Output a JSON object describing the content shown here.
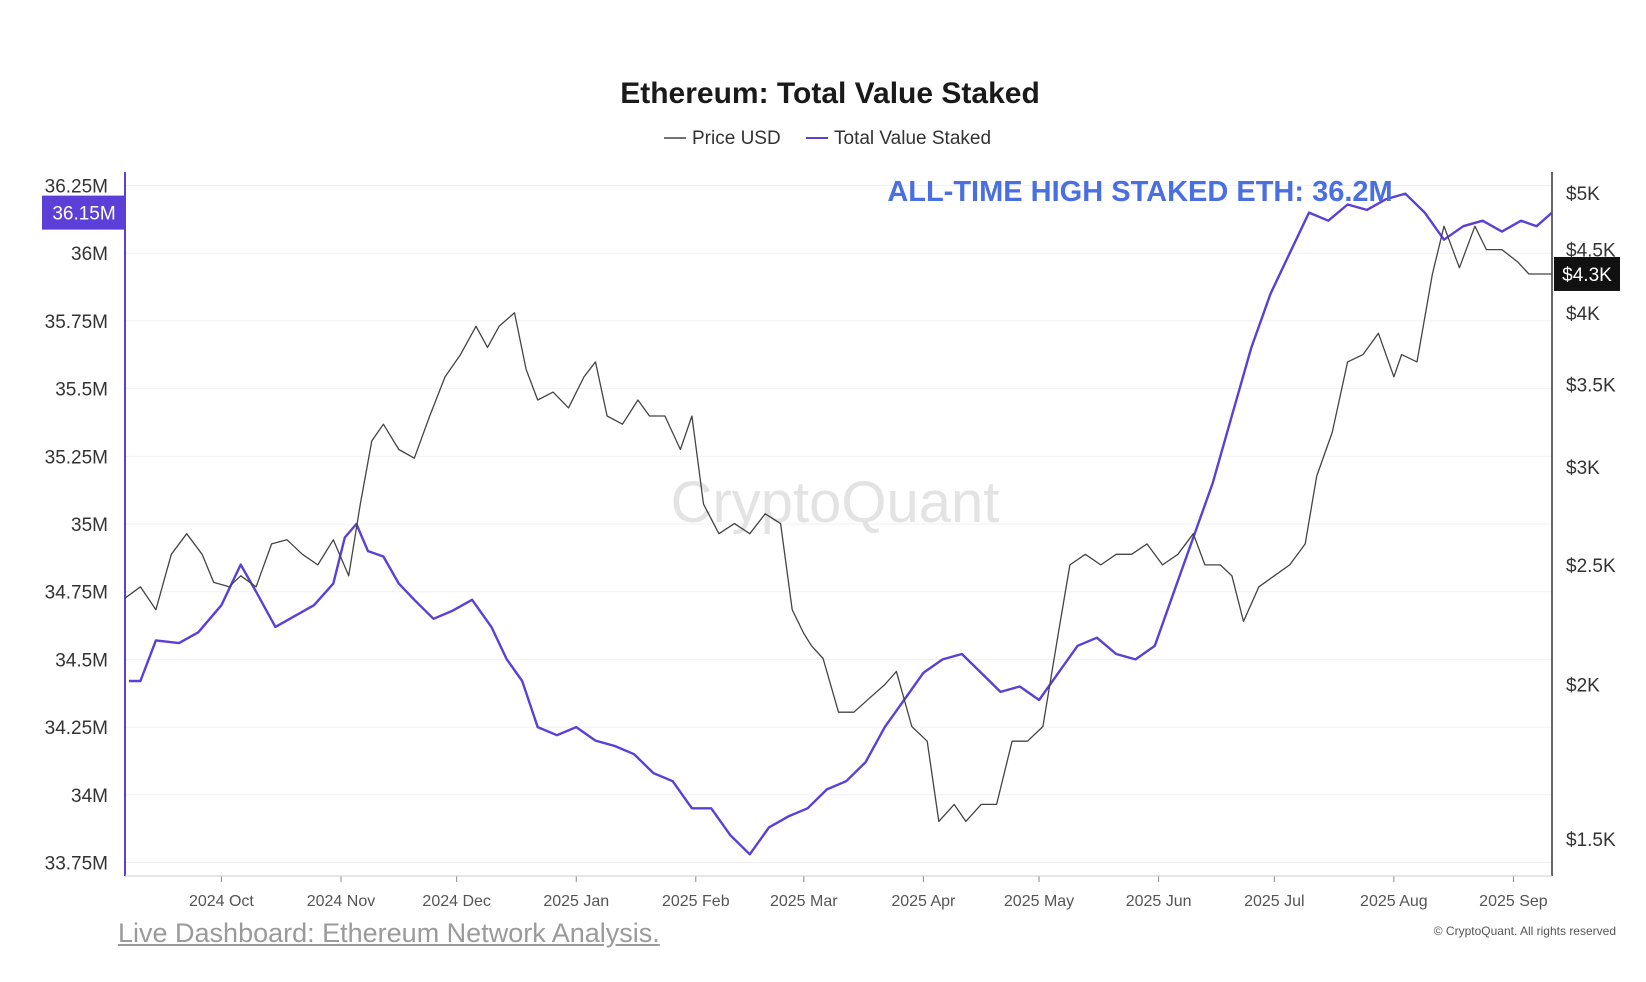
{
  "link": {
    "text": "Live Dashboard: Ethereum Network Analysis."
  },
  "chart_data": {
    "type": "line",
    "title": "Ethereum: Total Value Staked",
    "legend": [
      "Price USD",
      "Total Value Staked"
    ],
    "legend_placement": "top-center",
    "annotation": "ALL-TIME HIGH STAKED ETH: 36.2M",
    "watermark": "CryptoQuant",
    "copyright": "© CryptoQuant. All rights reserved",
    "grid": true,
    "colors": {
      "staked": "#5b3fd6",
      "price": "#444444",
      "annotation": "#4a6fe0",
      "badge_dark": "#111111",
      "badge_purple": "#5b3fd6"
    },
    "left_axis": {
      "label": "Total Value Staked",
      "ticks": [
        "33.75M",
        "34M",
        "34.25M",
        "34.5M",
        "34.75M",
        "35M",
        "35.25M",
        "35.5M",
        "35.75M",
        "36M",
        "36.25M"
      ],
      "tick_values": [
        33.75,
        34,
        34.25,
        34.5,
        34.75,
        35,
        35.25,
        35.5,
        35.75,
        36,
        36.25
      ],
      "range": [
        33.7,
        36.3
      ],
      "current_label": "36.15M",
      "current_value": 36.15
    },
    "right_axis": {
      "label": "Price USD",
      "scale": "log",
      "ticks": [
        "$1.5K",
        "$2K",
        "$2.5K",
        "$3K",
        "$3.5K",
        "$4K",
        "$4.5K",
        "$5K"
      ],
      "tick_values": [
        1500,
        2000,
        2500,
        3000,
        3500,
        4000,
        4500,
        5000
      ],
      "range": [
        1400,
        5200
      ],
      "current_label": "$4.3K",
      "current_value": 4300
    },
    "x_axis": {
      "range": [
        "2024-09-06",
        "2025-09-11"
      ],
      "tick_labels": [
        "2024 Oct",
        "2024 Nov",
        "2024 Dec",
        "2025 Jan",
        "2025 Feb",
        "2025 Mar",
        "2025 Apr",
        "2025 May",
        "2025 Jun",
        "2025 Jul",
        "2025 Aug",
        "2025 Sep"
      ],
      "tick_dates": [
        "2024-10-01",
        "2024-11-01",
        "2024-12-01",
        "2025-01-01",
        "2025-02-01",
        "2025-03-01",
        "2025-04-01",
        "2025-05-01",
        "2025-06-01",
        "2025-07-01",
        "2025-08-01",
        "2025-09-01"
      ]
    },
    "series": [
      {
        "name": "Total Value Staked",
        "axis": "left",
        "x": [
          "2024-09-07",
          "2024-09-10",
          "2024-09-14",
          "2024-09-20",
          "2024-09-25",
          "2024-10-01",
          "2024-10-06",
          "2024-10-10",
          "2024-10-15",
          "2024-10-20",
          "2024-10-25",
          "2024-10-30",
          "2024-11-02",
          "2024-11-05",
          "2024-11-08",
          "2024-11-12",
          "2024-11-16",
          "2024-11-20",
          "2024-11-25",
          "2024-11-30",
          "2024-12-05",
          "2024-12-10",
          "2024-12-14",
          "2024-12-18",
          "2024-12-22",
          "2024-12-27",
          "2025-01-01",
          "2025-01-06",
          "2025-01-11",
          "2025-01-16",
          "2025-01-21",
          "2025-01-26",
          "2025-01-31",
          "2025-02-05",
          "2025-02-10",
          "2025-02-15",
          "2025-02-20",
          "2025-02-25",
          "2025-03-02",
          "2025-03-07",
          "2025-03-12",
          "2025-03-17",
          "2025-03-22",
          "2025-03-27",
          "2025-04-01",
          "2025-04-06",
          "2025-04-11",
          "2025-04-16",
          "2025-04-21",
          "2025-04-26",
          "2025-05-01",
          "2025-05-06",
          "2025-05-11",
          "2025-05-16",
          "2025-05-21",
          "2025-05-26",
          "2025-05-31",
          "2025-06-05",
          "2025-06-10",
          "2025-06-15",
          "2025-06-20",
          "2025-06-25",
          "2025-06-30",
          "2025-07-05",
          "2025-07-10",
          "2025-07-15",
          "2025-07-20",
          "2025-07-25",
          "2025-07-30",
          "2025-08-04",
          "2025-08-09",
          "2025-08-14",
          "2025-08-19",
          "2025-08-24",
          "2025-08-29",
          "2025-09-03",
          "2025-09-07",
          "2025-09-11"
        ],
        "values": [
          34.42,
          34.42,
          34.57,
          34.56,
          34.6,
          34.7,
          34.85,
          34.75,
          34.62,
          34.66,
          34.7,
          34.78,
          34.95,
          35.0,
          34.9,
          34.88,
          34.78,
          34.72,
          34.65,
          34.68,
          34.72,
          34.62,
          34.5,
          34.42,
          34.25,
          34.22,
          34.25,
          34.2,
          34.18,
          34.15,
          34.08,
          34.05,
          33.95,
          33.95,
          33.85,
          33.78,
          33.88,
          33.92,
          33.95,
          34.02,
          34.05,
          34.12,
          34.25,
          34.35,
          34.45,
          34.5,
          34.52,
          34.45,
          34.38,
          34.4,
          34.35,
          34.45,
          34.55,
          34.58,
          34.52,
          34.5,
          34.55,
          34.75,
          34.95,
          35.15,
          35.4,
          35.65,
          35.85,
          36.0,
          36.15,
          36.12,
          36.18,
          36.16,
          36.2,
          36.22,
          36.15,
          36.05,
          36.1,
          36.12,
          36.08,
          36.12,
          36.1,
          36.15
        ]
      },
      {
        "name": "Price USD",
        "axis": "right",
        "x": [
          "2024-09-06",
          "2024-09-10",
          "2024-09-14",
          "2024-09-18",
          "2024-09-22",
          "2024-09-26",
          "2024-09-29",
          "2024-10-03",
          "2024-10-06",
          "2024-10-10",
          "2024-10-14",
          "2024-10-18",
          "2024-10-22",
          "2024-10-26",
          "2024-10-30",
          "2024-11-03",
          "2024-11-06",
          "2024-11-09",
          "2024-11-12",
          "2024-11-16",
          "2024-11-20",
          "2024-11-24",
          "2024-11-28",
          "2024-12-02",
          "2024-12-06",
          "2024-12-09",
          "2024-12-12",
          "2024-12-16",
          "2024-12-19",
          "2024-12-22",
          "2024-12-26",
          "2024-12-30",
          "2025-01-03",
          "2025-01-06",
          "2025-01-09",
          "2025-01-13",
          "2025-01-17",
          "2025-01-20",
          "2025-01-24",
          "2025-01-28",
          "2025-01-31",
          "2025-02-03",
          "2025-02-07",
          "2025-02-11",
          "2025-02-15",
          "2025-02-19",
          "2025-02-23",
          "2025-02-26",
          "2025-03-01",
          "2025-03-03",
          "2025-03-06",
          "2025-03-10",
          "2025-03-14",
          "2025-03-18",
          "2025-03-22",
          "2025-03-25",
          "2025-03-29",
          "2025-04-02",
          "2025-04-05",
          "2025-04-09",
          "2025-04-12",
          "2025-04-16",
          "2025-04-20",
          "2025-04-24",
          "2025-04-28",
          "2025-05-02",
          "2025-05-06",
          "2025-05-09",
          "2025-05-13",
          "2025-05-17",
          "2025-05-21",
          "2025-05-25",
          "2025-05-29",
          "2025-06-02",
          "2025-06-06",
          "2025-06-10",
          "2025-06-13",
          "2025-06-17",
          "2025-06-20",
          "2025-06-23",
          "2025-06-27",
          "2025-07-01",
          "2025-07-05",
          "2025-07-09",
          "2025-07-12",
          "2025-07-16",
          "2025-07-20",
          "2025-07-24",
          "2025-07-28",
          "2025-08-01",
          "2025-08-03",
          "2025-08-07",
          "2025-08-11",
          "2025-08-14",
          "2025-08-18",
          "2025-08-22",
          "2025-08-25",
          "2025-08-29",
          "2025-09-02",
          "2025-09-05",
          "2025-09-08",
          "2025-09-11"
        ],
        "values": [
          2350,
          2400,
          2300,
          2550,
          2650,
          2550,
          2420,
          2400,
          2450,
          2400,
          2600,
          2620,
          2550,
          2500,
          2620,
          2450,
          2800,
          3150,
          3250,
          3100,
          3050,
          3300,
          3550,
          3700,
          3900,
          3750,
          3900,
          4000,
          3600,
          3400,
          3450,
          3350,
          3550,
          3650,
          3300,
          3250,
          3400,
          3300,
          3300,
          3100,
          3300,
          2800,
          2650,
          2700,
          2650,
          2750,
          2700,
          2300,
          2200,
          2150,
          2100,
          1900,
          1900,
          1950,
          2000,
          2050,
          1850,
          1800,
          1550,
          1600,
          1550,
          1600,
          1600,
          1800,
          1800,
          1850,
          2200,
          2500,
          2550,
          2500,
          2550,
          2550,
          2600,
          2500,
          2550,
          2650,
          2500,
          2500,
          2450,
          2250,
          2400,
          2450,
          2500,
          2600,
          2950,
          3200,
          3650,
          3700,
          3850,
          3550,
          3700,
          3650,
          4300,
          4700,
          4350,
          4700,
          4500,
          4500,
          4400,
          4300,
          4300,
          4300
        ]
      }
    ]
  }
}
